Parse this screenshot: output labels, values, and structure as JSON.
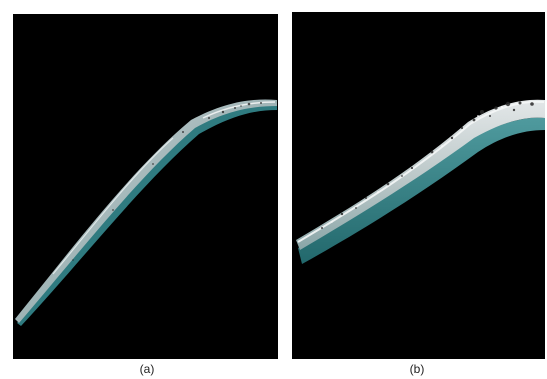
{
  "panels": [
    {
      "id": "a",
      "caption": "(a)"
    },
    {
      "id": "b",
      "caption": "(b)"
    }
  ],
  "colors": {
    "background": "#000000",
    "surface_highlight": "#d8dde0",
    "surface_shadow": "#3c8a8e",
    "speckle_dark": "#2a2a2a"
  }
}
